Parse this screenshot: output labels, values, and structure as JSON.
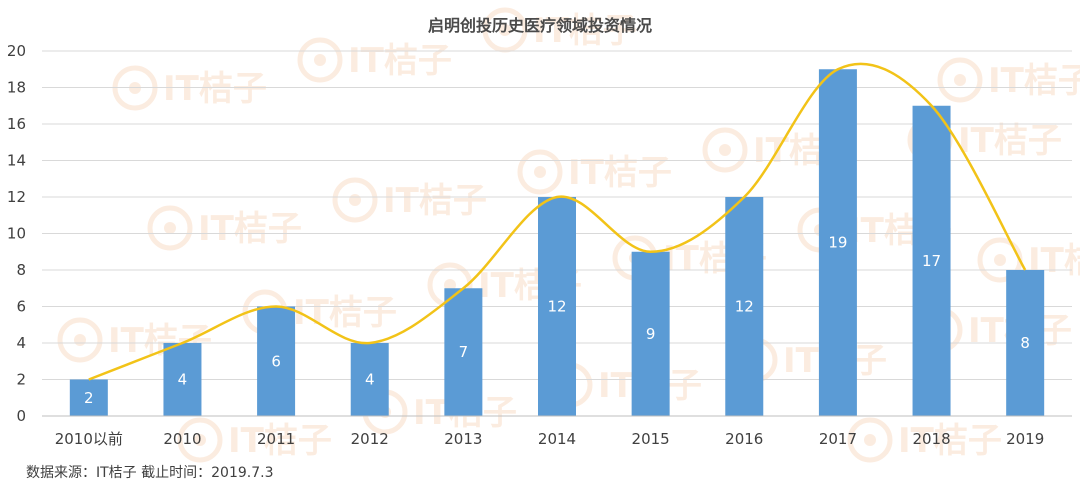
{
  "title": "启明创投历史医疗领域投资情况",
  "source_note": "数据来源：IT桔子  截止时间：2019.7.3",
  "watermark_text": "IT桔子",
  "colors": {
    "bar": "#5b9bd5",
    "line": "#f2c318",
    "grid": "#d9d9d9",
    "watermark": "#f6c9a7"
  },
  "chart_data": {
    "type": "bar",
    "title": "启明创投历史医疗领域投资情况",
    "categories": [
      "2010以前",
      "2010",
      "2011",
      "2012",
      "2013",
      "2014",
      "2015",
      "2016",
      "2017",
      "2018",
      "2019"
    ],
    "values": [
      2,
      4,
      6,
      4,
      7,
      12,
      9,
      12,
      19,
      17,
      8
    ],
    "overlay": {
      "type": "line",
      "smooth": true,
      "values": [
        2,
        4,
        6,
        4,
        7,
        12,
        9,
        12,
        19,
        17,
        8
      ]
    },
    "data_labels": [
      "2",
      "4",
      "6",
      "4",
      "7",
      "12",
      "9",
      "12",
      "19",
      "17",
      "8"
    ],
    "xlabel": "",
    "ylabel": "",
    "ylim": [
      0,
      20
    ],
    "yticks": [
      0,
      2,
      4,
      6,
      8,
      10,
      12,
      14,
      16,
      18,
      20
    ],
    "grid": true,
    "legend": "none"
  }
}
